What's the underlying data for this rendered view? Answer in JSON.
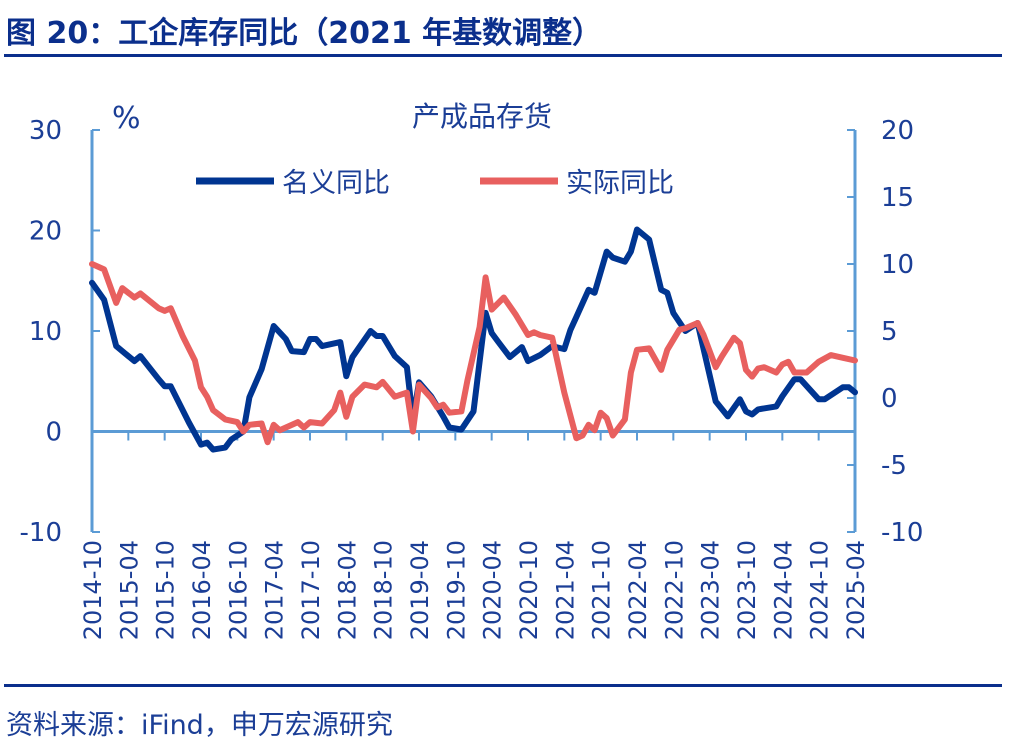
{
  "header": {
    "title": "图 20：工企库存同比（2021 年基数调整）"
  },
  "footer": {
    "source": "资料来源：iFind，申万宏源研究"
  },
  "colors": {
    "nominal": "#003591",
    "real": "#E8605F",
    "axis": "#5B9BD5",
    "text": "#1b3e96"
  },
  "chart_data": {
    "type": "line",
    "title": "产成品存货",
    "ylabel_left": "%",
    "left_axis": {
      "range": [
        -10,
        30
      ],
      "ticks": [
        -10,
        0,
        10,
        20,
        30
      ]
    },
    "right_axis": {
      "range": [
        -10,
        20
      ],
      "ticks": [
        -10,
        -5,
        0,
        5,
        10,
        15,
        20
      ]
    },
    "x_range": [
      "2014-10",
      "2025-04"
    ],
    "x_ticks": [
      "2014-10",
      "2015-04",
      "2015-10",
      "2016-04",
      "2016-10",
      "2017-04",
      "2017-10",
      "2018-04",
      "2018-10",
      "2019-04",
      "2019-10",
      "2020-04",
      "2020-10",
      "2021-04",
      "2021-10",
      "2022-04",
      "2022-10",
      "2023-04",
      "2023-10",
      "2024-04",
      "2024-10",
      "2025-04"
    ],
    "legend_position": "top",
    "grid": false,
    "series": [
      {
        "name": "名义同比",
        "axis": "left",
        "points": [
          [
            "2014-10",
            14.8
          ],
          [
            "2014-12",
            13.1
          ],
          [
            "2015-02",
            8.5
          ],
          [
            "2015-05",
            7.0
          ],
          [
            "2015-06",
            7.5
          ],
          [
            "2015-09",
            5.2
          ],
          [
            "2015-10",
            4.5
          ],
          [
            "2015-11",
            4.5
          ],
          [
            "2016-02",
            0.9
          ],
          [
            "2016-04",
            -1.3
          ],
          [
            "2016-05",
            -1.1
          ],
          [
            "2016-06",
            -1.8
          ],
          [
            "2016-08",
            -1.6
          ],
          [
            "2016-09",
            -0.8
          ],
          [
            "2016-11",
            0.0
          ],
          [
            "2016-12",
            3.4
          ],
          [
            "2017-02",
            6.2
          ],
          [
            "2017-04",
            10.5
          ],
          [
            "2017-06",
            9.2
          ],
          [
            "2017-07",
            8.0
          ],
          [
            "2017-09",
            7.9
          ],
          [
            "2017-10",
            9.2
          ],
          [
            "2017-11",
            9.2
          ],
          [
            "2017-12",
            8.5
          ],
          [
            "2018-03",
            8.9
          ],
          [
            "2018-04",
            5.5
          ],
          [
            "2018-05",
            7.4
          ],
          [
            "2018-08",
            10.0
          ],
          [
            "2018-09",
            9.5
          ],
          [
            "2018-10",
            9.5
          ],
          [
            "2018-12",
            7.5
          ],
          [
            "2019-02",
            6.4
          ],
          [
            "2019-03",
            1.2
          ],
          [
            "2019-04",
            4.9
          ],
          [
            "2019-06",
            3.5
          ],
          [
            "2019-08",
            1.5
          ],
          [
            "2019-09",
            0.4
          ],
          [
            "2019-11",
            0.2
          ],
          [
            "2020-01",
            2.0
          ],
          [
            "2020-03",
            11.8
          ],
          [
            "2020-04",
            9.8
          ],
          [
            "2020-05",
            9.0
          ],
          [
            "2020-07",
            7.4
          ],
          [
            "2020-09",
            8.4
          ],
          [
            "2020-10",
            7.0
          ],
          [
            "2020-12",
            7.6
          ],
          [
            "2021-02",
            8.5
          ],
          [
            "2021-04",
            8.2
          ],
          [
            "2021-05",
            10.1
          ],
          [
            "2021-06",
            11.4
          ],
          [
            "2021-08",
            14.1
          ],
          [
            "2021-09",
            13.8
          ],
          [
            "2021-11",
            17.9
          ],
          [
            "2021-12",
            17.3
          ],
          [
            "2022-02",
            16.9
          ],
          [
            "2022-03",
            17.9
          ],
          [
            "2022-04",
            20.1
          ],
          [
            "2022-06",
            19.1
          ],
          [
            "2022-08",
            14.1
          ],
          [
            "2022-09",
            13.8
          ],
          [
            "2022-10",
            11.8
          ],
          [
            "2022-12",
            10.0
          ],
          [
            "2023-02",
            10.8
          ],
          [
            "2023-03",
            8.2
          ],
          [
            "2023-05",
            3.0
          ],
          [
            "2023-07",
            1.5
          ],
          [
            "2023-09",
            3.2
          ],
          [
            "2023-10",
            2.0
          ],
          [
            "2023-11",
            1.7
          ],
          [
            "2023-12",
            2.2
          ],
          [
            "2024-03",
            2.5
          ],
          [
            "2024-04",
            3.5
          ],
          [
            "2024-06",
            5.2
          ],
          [
            "2024-07",
            5.2
          ],
          [
            "2024-10",
            3.2
          ],
          [
            "2024-11",
            3.2
          ],
          [
            "2025-02",
            4.4
          ],
          [
            "2025-03",
            4.4
          ],
          [
            "2025-04",
            3.9
          ]
        ]
      },
      {
        "name": "实际同比",
        "axis": "right",
        "points": [
          [
            "2014-10",
            10.0
          ],
          [
            "2014-12",
            9.6
          ],
          [
            "2015-02",
            7.1
          ],
          [
            "2015-03",
            8.2
          ],
          [
            "2015-05",
            7.5
          ],
          [
            "2015-06",
            7.8
          ],
          [
            "2015-09",
            6.7
          ],
          [
            "2015-10",
            6.5
          ],
          [
            "2015-11",
            6.7
          ],
          [
            "2016-01",
            4.6
          ],
          [
            "2016-03",
            2.8
          ],
          [
            "2016-04",
            0.8
          ],
          [
            "2016-05",
            0.1
          ],
          [
            "2016-06",
            -0.9
          ],
          [
            "2016-08",
            -1.6
          ],
          [
            "2016-10",
            -1.8
          ],
          [
            "2016-11",
            -2.5
          ],
          [
            "2016-12",
            -2.0
          ],
          [
            "2017-02",
            -1.9
          ],
          [
            "2017-03",
            -3.3
          ],
          [
            "2017-04",
            -2.0
          ],
          [
            "2017-05",
            -2.4
          ],
          [
            "2017-08",
            -1.8
          ],
          [
            "2017-09",
            -2.2
          ],
          [
            "2017-10",
            -1.8
          ],
          [
            "2017-12",
            -1.9
          ],
          [
            "2018-02",
            -0.9
          ],
          [
            "2018-03",
            0.4
          ],
          [
            "2018-04",
            -1.4
          ],
          [
            "2018-05",
            0.1
          ],
          [
            "2018-07",
            1.0
          ],
          [
            "2018-09",
            0.8
          ],
          [
            "2018-10",
            1.2
          ],
          [
            "2018-12",
            0.1
          ],
          [
            "2019-02",
            0.4
          ],
          [
            "2019-03",
            -2.5
          ],
          [
            "2019-04",
            1.0
          ],
          [
            "2019-06",
            0.0
          ],
          [
            "2019-07",
            -0.7
          ],
          [
            "2019-08",
            -0.5
          ],
          [
            "2019-09",
            -1.1
          ],
          [
            "2019-11",
            -1.0
          ],
          [
            "2019-12",
            1.3
          ],
          [
            "2020-02",
            5.3
          ],
          [
            "2020-03",
            9.0
          ],
          [
            "2020-04",
            6.6
          ],
          [
            "2020-06",
            7.5
          ],
          [
            "2020-08",
            6.2
          ],
          [
            "2020-10",
            4.7
          ],
          [
            "2020-11",
            4.9
          ],
          [
            "2020-12",
            4.7
          ],
          [
            "2021-02",
            4.5
          ],
          [
            "2021-04",
            0.4
          ],
          [
            "2021-06",
            -3.0
          ],
          [
            "2021-07",
            -2.8
          ],
          [
            "2021-08",
            -2.0
          ],
          [
            "2021-09",
            -2.4
          ],
          [
            "2021-10",
            -1.1
          ],
          [
            "2021-11",
            -1.5
          ],
          [
            "2021-12",
            -2.8
          ],
          [
            "2022-02",
            -1.6
          ],
          [
            "2022-03",
            1.9
          ],
          [
            "2022-04",
            3.6
          ],
          [
            "2022-06",
            3.7
          ],
          [
            "2022-08",
            2.1
          ],
          [
            "2022-09",
            3.6
          ],
          [
            "2022-11",
            5.1
          ],
          [
            "2022-12",
            5.2
          ],
          [
            "2023-02",
            5.6
          ],
          [
            "2023-03",
            4.7
          ],
          [
            "2023-05",
            2.3
          ],
          [
            "2023-06",
            3.1
          ],
          [
            "2023-08",
            4.5
          ],
          [
            "2023-09",
            4.1
          ],
          [
            "2023-10",
            2.1
          ],
          [
            "2023-11",
            1.6
          ],
          [
            "2023-12",
            2.2
          ],
          [
            "2024-01",
            2.3
          ],
          [
            "2024-03",
            1.9
          ],
          [
            "2024-04",
            2.5
          ],
          [
            "2024-05",
            2.7
          ],
          [
            "2024-06",
            1.9
          ],
          [
            "2024-08",
            1.9
          ],
          [
            "2024-10",
            2.7
          ],
          [
            "2024-12",
            3.2
          ],
          [
            "2025-02",
            3.0
          ],
          [
            "2025-04",
            2.8
          ]
        ]
      }
    ]
  }
}
